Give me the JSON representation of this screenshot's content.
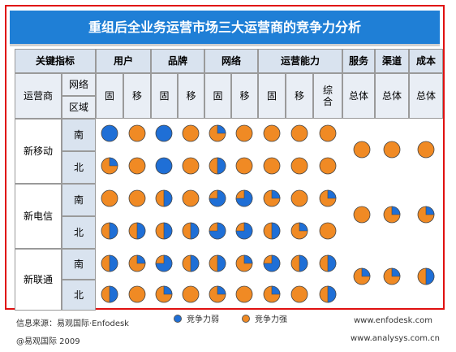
{
  "title": "重组后全业务运营市场三大运营商的竞争力分析",
  "header": {
    "key_indicator": "关键指标",
    "groups": [
      {
        "label": "用户"
      },
      {
        "label": "品牌"
      },
      {
        "label": "网络"
      },
      {
        "label": "运营能力"
      },
      {
        "label": "服务"
      },
      {
        "label": "渠道"
      },
      {
        "label": "成本"
      }
    ],
    "operator": "运营商",
    "network": "网络",
    "region": "区域",
    "sub_labels": [
      "固",
      "移",
      "固",
      "移",
      "固",
      "移",
      "固",
      "移",
      "综合",
      "总体",
      "总体",
      "总体"
    ]
  },
  "operators": [
    {
      "name": "新移动",
      "regions": [
        "南",
        "北"
      ]
    },
    {
      "name": "新电信",
      "regions": [
        "南",
        "北"
      ]
    },
    {
      "name": "新联通",
      "regions": [
        "南",
        "北"
      ]
    }
  ],
  "colors": {
    "weak": "#1f6fd6",
    "strong": "#f08a24"
  },
  "ratings": {
    "note": "fraction of each circle filled with the weak-competitiveness blue",
    "rows": [
      [
        1,
        0,
        1,
        0,
        0.25,
        0,
        0,
        0,
        0
      ],
      [
        0.25,
        0,
        1,
        0,
        0.5,
        0,
        0,
        0,
        0
      ],
      [
        0,
        0,
        0.5,
        0,
        0.75,
        0.75,
        0.25,
        0,
        0.25
      ],
      [
        0.5,
        0.5,
        0.5,
        0.5,
        0.75,
        0.75,
        0.5,
        0.25,
        0
      ],
      [
        0.5,
        0.25,
        0.75,
        0.5,
        0.5,
        0.25,
        0.75,
        0.5,
        0.5
      ],
      [
        0.5,
        0,
        0.25,
        0,
        0.25,
        0,
        0.25,
        0,
        0.5
      ]
    ],
    "overall": [
      [
        0,
        0,
        0
      ],
      [
        0,
        0.25,
        0.25
      ],
      [
        0.25,
        0.25,
        0.5
      ]
    ]
  },
  "legend": {
    "weak": "竞争力弱",
    "strong": "竞争力强"
  },
  "footer": {
    "source": "信息来源：易观国际·Enfodesk",
    "copyright": "@易观国际 2009",
    "site1": "www.enfodesk.com",
    "site2": "www.analysys.com.cn"
  }
}
